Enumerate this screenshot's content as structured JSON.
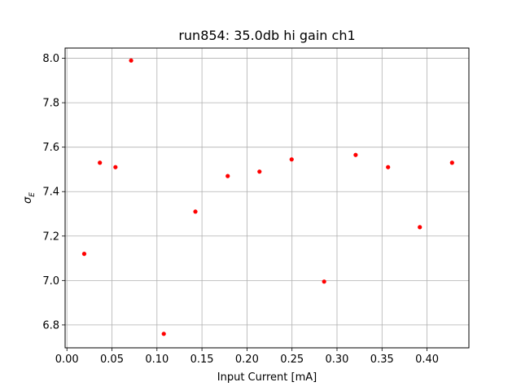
{
  "chart_data": {
    "type": "scatter",
    "title": "run854: 35.0db hi gain ch1",
    "xlabel": "Input Current [mA]",
    "ylabel_base": "σ",
    "ylabel_sub": "E",
    "xlim": [
      -0.002,
      0.4465
    ],
    "ylim": [
      6.697,
      8.046
    ],
    "xticks": [
      0.0,
      0.05,
      0.1,
      0.15,
      0.2,
      0.25,
      0.3,
      0.35,
      0.4
    ],
    "xtick_labels": [
      "0.00",
      "0.05",
      "0.10",
      "0.15",
      "0.20",
      "0.25",
      "0.30",
      "0.35",
      "0.40"
    ],
    "yticks": [
      6.8,
      7.0,
      7.2,
      7.4,
      7.6,
      7.8,
      8.0
    ],
    "ytick_labels": [
      "6.8",
      "7.0",
      "7.2",
      "7.4",
      "7.6",
      "7.8",
      "8.0"
    ],
    "grid": true,
    "colors": {
      "marker": "#ff0000",
      "grid": "#b0b0b0",
      "axes": "#000000"
    },
    "x": [
      0.0192,
      0.0366,
      0.0539,
      0.0713,
      0.1076,
      0.1427,
      0.1786,
      0.2139,
      0.2496,
      0.2857,
      0.3207,
      0.3567,
      0.392,
      0.4278
    ],
    "y": [
      7.12,
      7.53,
      7.51,
      7.99,
      6.76,
      7.31,
      7.47,
      7.49,
      7.545,
      6.995,
      7.565,
      7.51,
      7.24,
      7.53
    ]
  }
}
